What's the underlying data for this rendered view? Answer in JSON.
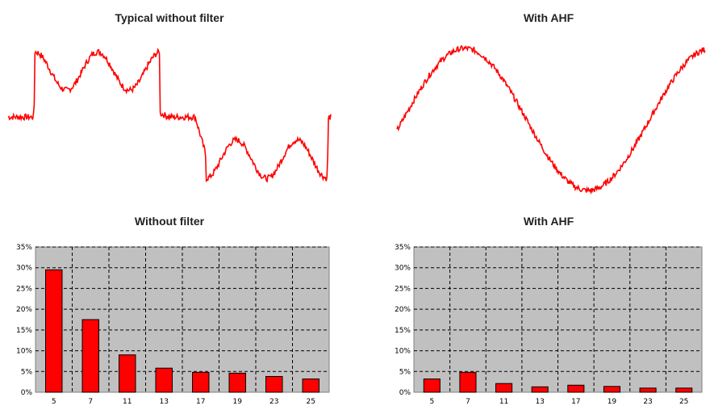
{
  "titles": {
    "wave_without": "Typical without filter",
    "wave_with": "With AHF",
    "bars_without": "Without filter",
    "bars_with": "With AHF"
  },
  "colors": {
    "trace": "#ff0000",
    "bar": "#ff0000",
    "plot_bg": "#c0c0c0",
    "grid": "#000000"
  },
  "chart_data": [
    {
      "type": "line",
      "title": "Typical without filter",
      "description_shape": "six-pulse rectifier current: flat zero step, double-hump positive half, flat zero step, double-dip negative half",
      "x": [
        0,
        0.08,
        0.083,
        0.14,
        0.22,
        0.3,
        0.38,
        0.42,
        0.47,
        0.5,
        0.503,
        0.58,
        0.61,
        0.613,
        0.7,
        0.78,
        0.86,
        0.94,
        0.99,
        0.993,
        1.0
      ],
      "y": [
        0,
        0,
        0.52,
        0.6,
        0.85,
        0.42,
        0.82,
        0.72,
        0.05,
        0,
        0,
        0,
        -0.45,
        -0.55,
        -0.75,
        -0.85,
        -0.5,
        -0.88,
        -0.6,
        0,
        0
      ],
      "xlim": [
        0,
        1
      ],
      "ylim": [
        -1,
        1
      ]
    },
    {
      "type": "line",
      "title": "With AHF",
      "description_shape": "nearly sinusoidal current with noise",
      "x": [
        0,
        0.1,
        0.2,
        0.3,
        0.4,
        0.5,
        0.6,
        0.7,
        0.8,
        0.9,
        1.0
      ],
      "y": [
        0,
        0.55,
        0.95,
        0.7,
        0.05,
        -0.55,
        -0.95,
        -0.6,
        0.05,
        0.6,
        0.95
      ],
      "xlim": [
        0,
        1
      ],
      "ylim": [
        -1,
        1
      ]
    },
    {
      "type": "bar",
      "title": "Without filter",
      "categories": [
        "5",
        "7",
        "11",
        "13",
        "17",
        "19",
        "23",
        "25"
      ],
      "values": [
        29.5,
        17.5,
        9,
        5.8,
        4.8,
        4.6,
        3.8,
        3.2
      ],
      "ylim": [
        0,
        35
      ],
      "yticks": [
        "0%",
        "5%",
        "10%",
        "15%",
        "20%",
        "25%",
        "30%",
        "35%"
      ],
      "grid": true
    },
    {
      "type": "bar",
      "title": "With AHF",
      "categories": [
        "5",
        "7",
        "11",
        "13",
        "17",
        "19",
        "23",
        "25"
      ],
      "values": [
        3.2,
        4.8,
        2.1,
        1.3,
        1.7,
        1.4,
        1.0,
        1.0
      ],
      "ylim": [
        0,
        35
      ],
      "yticks": [
        "0%",
        "5%",
        "10%",
        "15%",
        "20%",
        "25%",
        "30%",
        "35%"
      ],
      "grid": true
    }
  ]
}
